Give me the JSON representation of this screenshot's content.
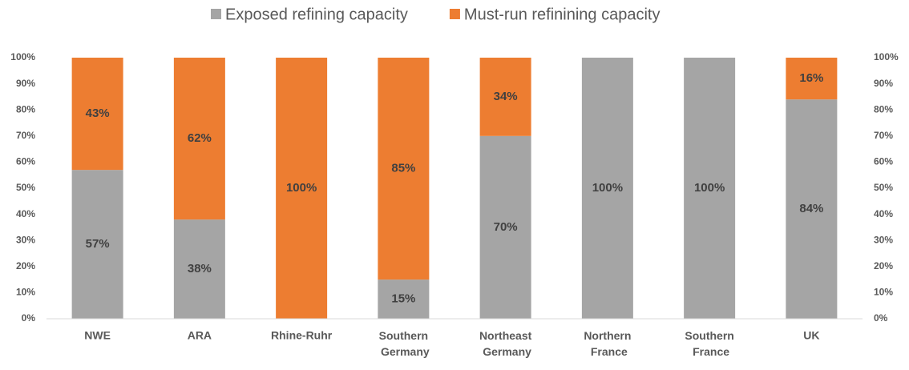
{
  "chart_data": {
    "type": "stacked_bar",
    "categories": [
      "NWE",
      "ARA",
      "Rhine-Ruhr",
      "Southern Germany",
      "Northeast Germany",
      "Northern France",
      "Southern France",
      "UK"
    ],
    "series": [
      {
        "name": "Exposed refining capacity",
        "color": "#a5a5a5",
        "values": [
          57,
          38,
          0,
          15,
          70,
          100,
          100,
          84
        ],
        "value_labels": [
          "57%",
          "38%",
          null,
          "15%",
          "70%",
          "100%",
          "100%",
          "84%"
        ]
      },
      {
        "name": "Must-run refinining capacity",
        "color": "#ed7d31",
        "values": [
          43,
          62,
          100,
          85,
          34,
          0,
          0,
          16
        ],
        "value_labels": [
          "43%",
          "62%",
          "100%",
          "85%",
          "34%",
          null,
          null,
          "16%"
        ]
      }
    ],
    "ylim": [
      0,
      100
    ],
    "yticks": [
      {
        "value": 0,
        "label": "0%"
      },
      {
        "value": 10,
        "label": "10%"
      },
      {
        "value": 20,
        "label": "20%"
      },
      {
        "value": 30,
        "label": "30%"
      },
      {
        "value": 40,
        "label": "40%"
      },
      {
        "value": 50,
        "label": "50%"
      },
      {
        "value": 60,
        "label": "60%"
      },
      {
        "value": 70,
        "label": "70%"
      },
      {
        "value": 80,
        "label": "80%"
      },
      {
        "value": 90,
        "label": "90%"
      },
      {
        "value": 100,
        "label": "100%"
      }
    ],
    "y2lim": [
      0,
      100
    ],
    "y2ticks": [
      {
        "value": 0,
        "label": "0%"
      },
      {
        "value": 10,
        "label": "10%"
      },
      {
        "value": 20,
        "label": "20%"
      },
      {
        "value": 30,
        "label": "30%"
      },
      {
        "value": 40,
        "label": "40%"
      },
      {
        "value": 50,
        "label": "50%"
      },
      {
        "value": 60,
        "label": "60%"
      },
      {
        "value": 70,
        "label": "70%"
      },
      {
        "value": 80,
        "label": "80%"
      },
      {
        "value": 90,
        "label": "90%"
      },
      {
        "value": 100,
        "label": "100%"
      }
    ],
    "legend": "top"
  }
}
